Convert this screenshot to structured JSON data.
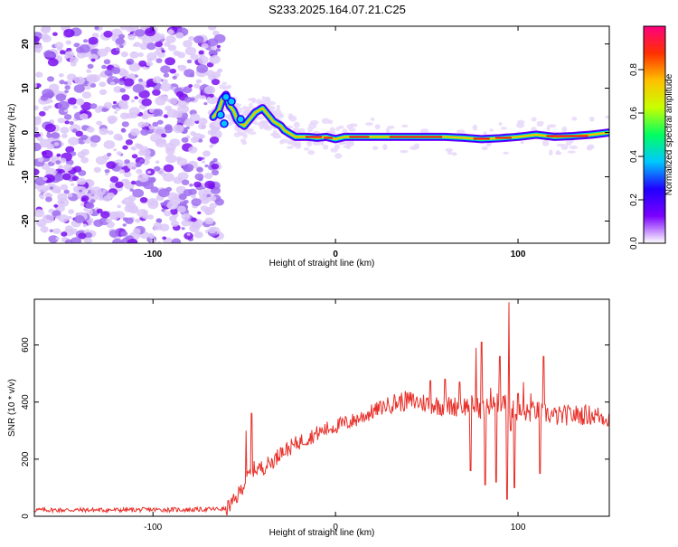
{
  "figure_title": "S233.2025.164.07.21.C25",
  "chart_data": [
    {
      "type": "heatmap",
      "id": "spectrogram",
      "xlabel": "Height of straight line (km)",
      "ylabel": "Frequency (Hz)",
      "xlim": [
        -165,
        150
      ],
      "ylim": [
        -25,
        24
      ],
      "xticks": [
        -100,
        0,
        100
      ],
      "yticks": [
        -20,
        -10,
        0,
        10,
        20
      ],
      "colorbar": {
        "label": "Normalized spectral amplitude",
        "range": [
          0,
          1
        ],
        "ticks": [
          0.0,
          0.2,
          0.4,
          0.6,
          0.8
        ],
        "colormap": [
          "#ffffff",
          "#7b00ff",
          "#2000ff",
          "#00c8ff",
          "#00ff60",
          "#c8ff00",
          "#ffc000",
          "#ff3000",
          "#ff0080"
        ]
      },
      "noise_region_x": [
        -165,
        -63
      ],
      "ridge": {
        "x": [
          -67,
          -64,
          -62,
          -60,
          -58,
          -56,
          -54,
          -52,
          -50,
          -48,
          -46,
          -44,
          -42,
          -40,
          -38,
          -36,
          -34,
          -32,
          -30,
          -28,
          -26,
          -24,
          -22,
          -20,
          -15,
          -10,
          -5,
          0,
          5,
          10,
          20,
          40,
          60,
          70,
          80,
          90,
          100,
          110,
          120,
          130,
          140,
          150
        ],
        "y": [
          3.5,
          5,
          7.5,
          8.5,
          6,
          5,
          3,
          2,
          1.5,
          2.5,
          3.5,
          4.5,
          5,
          5.5,
          4.5,
          3.5,
          2.5,
          2,
          1.5,
          0.5,
          0,
          -0.5,
          -1,
          -1,
          -1,
          -1.2,
          -1,
          -1.5,
          -1,
          -1,
          -1,
          -1,
          -1,
          -1.2,
          -1.5,
          -1.3,
          -1,
          -0.5,
          -1,
          -0.8,
          -0.5,
          0
        ]
      }
    },
    {
      "type": "line",
      "id": "snr",
      "xlabel": "Height of straight line (km)",
      "ylabel": "SNR (10 * v/v)",
      "xlim": [
        -165,
        150
      ],
      "ylim": [
        0,
        760
      ],
      "xticks": [
        -100,
        0,
        100
      ],
      "yticks": [
        0,
        200,
        400,
        600
      ],
      "color": "#e8302a",
      "series": [
        {
          "x": [
            -165,
            -140,
            -120,
            -100,
            -80,
            -60,
            -55,
            -50,
            -45,
            -40,
            -35,
            -30,
            -25,
            -20,
            -15,
            -10,
            -5,
            0,
            10,
            20,
            30,
            40,
            50,
            60,
            70,
            75,
            80,
            85,
            90,
            95,
            100,
            105,
            110,
            115,
            120,
            130,
            140,
            150
          ],
          "values": [
            22,
            22,
            22,
            23,
            23,
            26,
            55,
            115,
            165,
            170,
            190,
            220,
            240,
            260,
            275,
            290,
            305,
            315,
            335,
            365,
            395,
            405,
            395,
            385,
            385,
            390,
            375,
            385,
            400,
            385,
            365,
            360,
            370,
            360,
            350,
            355,
            355,
            345
          ]
        }
      ],
      "spikes": {
        "x": [
          -49,
          -46,
          -30,
          52,
          60,
          68,
          74,
          77,
          80,
          82,
          85,
          88,
          90,
          92,
          94,
          95,
          96,
          98,
          100,
          103,
          107,
          112,
          114
        ],
        "values": [
          300,
          360,
          240,
          475,
          480,
          470,
          160,
          590,
          610,
          110,
          450,
          120,
          560,
          420,
          60,
          750,
          300,
          100,
          430,
          470,
          430,
          150,
          560
        ]
      }
    }
  ]
}
